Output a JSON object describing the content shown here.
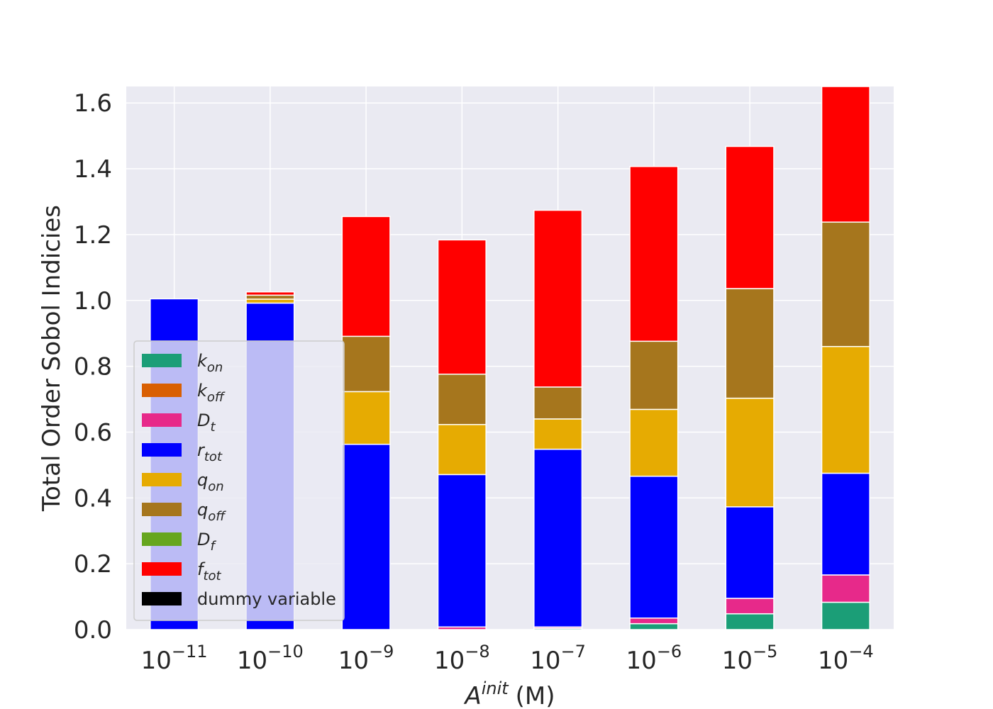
{
  "chart_data": {
    "type": "bar",
    "stacked": true,
    "title": "",
    "xlabel": {
      "base": "A",
      "superscript": "init",
      "unit": "(M)"
    },
    "ylabel": "Total Order Sobol Indicies",
    "ylim": [
      0,
      1.65
    ],
    "yticks": [
      "0.0",
      "0.2",
      "0.4",
      "0.6",
      "0.8",
      "1.0",
      "1.2",
      "1.4",
      "1.6"
    ],
    "categories": [
      {
        "base": "10",
        "exp": "−11"
      },
      {
        "base": "10",
        "exp": "−10"
      },
      {
        "base": "10",
        "exp": "−9"
      },
      {
        "base": "10",
        "exp": "−8"
      },
      {
        "base": "10",
        "exp": "−7"
      },
      {
        "base": "10",
        "exp": "−6"
      },
      {
        "base": "10",
        "exp": "−5"
      },
      {
        "base": "10",
        "exp": "−4"
      }
    ],
    "grid": true,
    "legend_position": "lower-left",
    "series": [
      {
        "name": {
          "main": "k",
          "sub": "on"
        },
        "color": "#1b9e77",
        "values": [
          0,
          0,
          0,
          0,
          0.004,
          0.018,
          0.048,
          0.083
        ]
      },
      {
        "name": {
          "main": "k",
          "sub": "off"
        },
        "color": "#d95f02",
        "values": [
          0,
          0,
          0,
          0,
          0,
          0,
          0,
          0
        ]
      },
      {
        "name": {
          "main": "D",
          "sub": "t"
        },
        "color": "#e7298a",
        "values": [
          0,
          0,
          0,
          0.008,
          0.004,
          0.017,
          0.047,
          0.083
        ]
      },
      {
        "name": {
          "main": "r",
          "sub": "tot"
        },
        "color": "#0000ff",
        "values": [
          1.005,
          0.992,
          0.563,
          0.463,
          0.54,
          0.431,
          0.278,
          0.309
        ]
      },
      {
        "name": {
          "main": "q",
          "sub": "on"
        },
        "color": "#e6ab02",
        "values": [
          0,
          0.012,
          0.16,
          0.152,
          0.092,
          0.203,
          0.33,
          0.385
        ]
      },
      {
        "name": {
          "main": "q",
          "sub": "off"
        },
        "color": "#a6761d",
        "values": [
          0,
          0.012,
          0.168,
          0.153,
          0.097,
          0.207,
          0.333,
          0.378
        ]
      },
      {
        "name": {
          "main": "D",
          "sub": "f"
        },
        "color": "#66a61e",
        "values": [
          0,
          0,
          0,
          0,
          0,
          0,
          0,
          0
        ]
      },
      {
        "name": {
          "main": "f",
          "sub": "tot"
        },
        "color": "#ff0000",
        "values": [
          0,
          0.01,
          0.364,
          0.408,
          0.537,
          0.531,
          0.432,
          0.412
        ]
      },
      {
        "name": {
          "main": "dummy variable",
          "sub": ""
        },
        "color": "#000000",
        "values": [
          0,
          0,
          0,
          0,
          0,
          0,
          0,
          0
        ]
      }
    ]
  }
}
